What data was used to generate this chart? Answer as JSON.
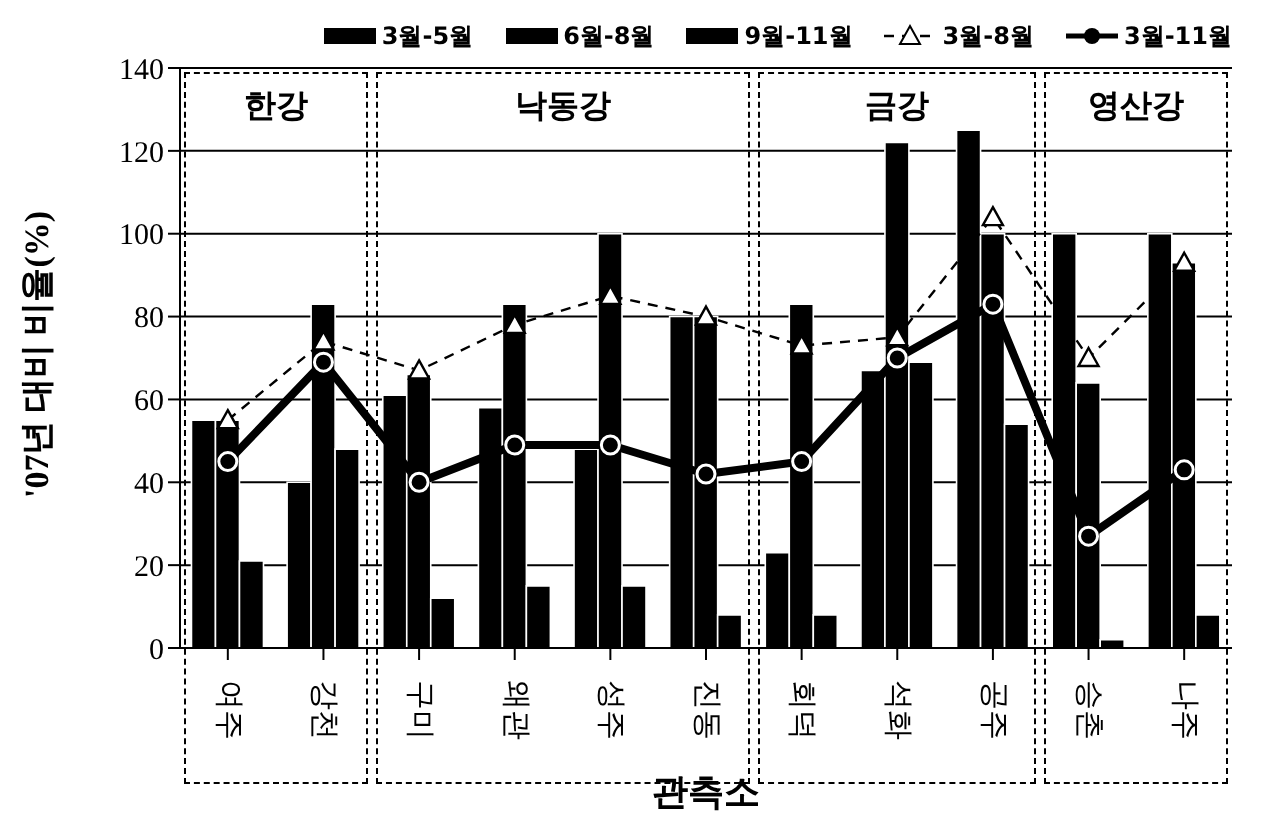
{
  "chart_data": {
    "type": "bar",
    "xlabel": "관측소",
    "ylabel": "'07년 대비 비율(%)",
    "categories": [
      "여주",
      "강천",
      "구미",
      "왜관",
      "성주",
      "진동",
      "회덕",
      "석화",
      "공주",
      "승촌",
      "나주"
    ],
    "series": [
      {
        "name": "3월-5월",
        "color": "#000000",
        "values": [
          55,
          40,
          61,
          58,
          48,
          80,
          23,
          67,
          125,
          100,
          100
        ]
      },
      {
        "name": "6월-8월",
        "color": "#000000",
        "values": [
          55,
          83,
          66,
          83,
          100,
          80,
          83,
          122,
          100,
          64,
          93
        ]
      },
      {
        "name": "9월-11월",
        "color": "#000000",
        "values": [
          21,
          48,
          12,
          15,
          15,
          8,
          8,
          69,
          54,
          2,
          8
        ]
      },
      {
        "name": "3월-8월",
        "type": "line",
        "color": "#000000",
        "line_style": "dashed",
        "marker": "triangle",
        "values": [
          55,
          74,
          67,
          78,
          85,
          80,
          73,
          75,
          104,
          70,
          93
        ]
      },
      {
        "name": "3월-11월",
        "type": "line",
        "color": "#000000",
        "line_style": "solid",
        "marker": "circle",
        "values": [
          45,
          69,
          40,
          49,
          49,
          42,
          45,
          70,
          83,
          27,
          43
        ]
      }
    ],
    "ylim": [
      0,
      140
    ],
    "yticks": [
      0,
      20,
      40,
      60,
      80,
      100,
      120,
      140
    ],
    "grid": "y",
    "legend": "top",
    "annotations": [
      "한강",
      "낙동강",
      "금강",
      "영산강"
    ]
  }
}
